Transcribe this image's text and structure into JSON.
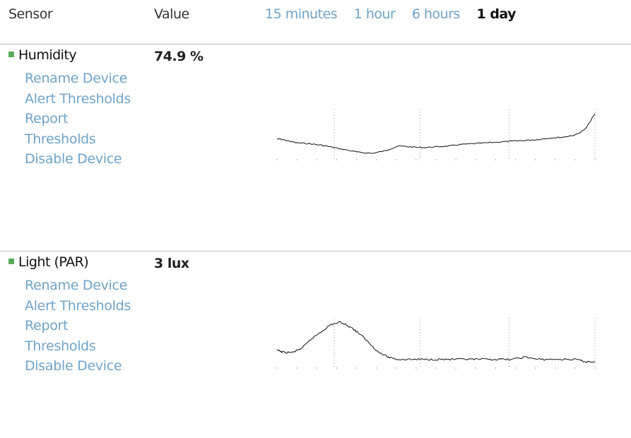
{
  "header": {
    "sensor_label": "Sensor",
    "value_label": "Value",
    "time_ranges": [
      "15 minutes",
      "1 hour",
      "6 hours",
      "1 day"
    ],
    "active_range": "1 day"
  },
  "sensors": [
    {
      "name": "Humidity",
      "value": "74.9 %",
      "status_color": "#5aaa5a",
      "actions": [
        "Rename Device",
        "Alert Thresholds",
        "Report Thresholds",
        "Disable Device"
      ]
    },
    {
      "name": "Light (PAR)",
      "value": "3 lux",
      "status_color": "#5aaa5a",
      "actions": [
        "Rename Device",
        "Alert Thresholds",
        "Report Thresholds",
        "Disable Device"
      ]
    }
  ],
  "chart_data": [
    {
      "type": "line",
      "x": [
        0,
        0.03,
        0.06,
        0.1,
        0.14,
        0.18,
        0.22,
        0.26,
        0.3,
        0.34,
        0.38,
        0.42,
        0.46,
        0.5,
        0.54,
        0.58,
        0.62,
        0.66,
        0.7,
        0.74,
        0.78,
        0.82,
        0.86,
        0.9,
        0.94,
        0.97,
        1.0
      ],
      "series": [
        {
          "values": [
            71.8,
            71.6,
            71.3,
            71.2,
            71.0,
            70.7,
            70.4,
            70.1,
            70.0,
            70.3,
            70.9,
            70.8,
            70.7,
            70.8,
            70.9,
            71.1,
            71.2,
            71.3,
            71.4,
            71.5,
            71.6,
            71.7,
            71.9,
            72.0,
            72.3,
            73.0,
            74.9
          ]
        }
      ],
      "grid": true,
      "legend": "none"
    },
    {
      "type": "line",
      "x": [
        0,
        0.02,
        0.05,
        0.08,
        0.11,
        0.14,
        0.17,
        0.2,
        0.23,
        0.26,
        0.29,
        0.32,
        0.35,
        0.38,
        0.42,
        0.46,
        0.5,
        0.54,
        0.58,
        0.62,
        0.66,
        0.7,
        0.74,
        0.78,
        0.82,
        0.86,
        0.9,
        0.94,
        0.97,
        1.0
      ],
      "series": [
        {
          "values": [
            8,
            7,
            7,
            9,
            13,
            16,
            19,
            20,
            18,
            15,
            11,
            7,
            5,
            4,
            4,
            4,
            4,
            4,
            4,
            4,
            4,
            4,
            4,
            5,
            4,
            4,
            4,
            4,
            3,
            3
          ]
        }
      ],
      "grid": true,
      "legend": "none"
    }
  ]
}
